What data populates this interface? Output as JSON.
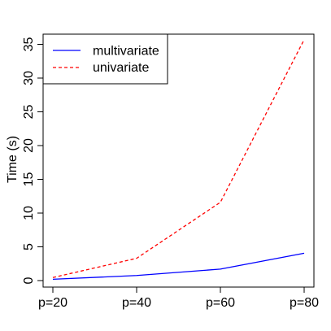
{
  "chart_data": {
    "type": "line",
    "title": "",
    "xlabel": "",
    "ylabel": "Time (s)",
    "categories": [
      "p=20",
      "p=40",
      "p=60",
      "p=80"
    ],
    "ylim": [
      0,
      36.5
    ],
    "yticks": [
      0,
      5,
      10,
      15,
      20,
      25,
      30,
      35
    ],
    "grid": false,
    "legend_position": "top-left",
    "series": [
      {
        "name": "multivariate",
        "values": [
          0.2,
          0.75,
          1.7,
          4.05
        ],
        "color": "#0000ff",
        "dash": "solid"
      },
      {
        "name": "univariate",
        "values": [
          0.45,
          3.3,
          11.6,
          35.7
        ],
        "color": "#ff0000",
        "dash": "dashed"
      }
    ]
  }
}
